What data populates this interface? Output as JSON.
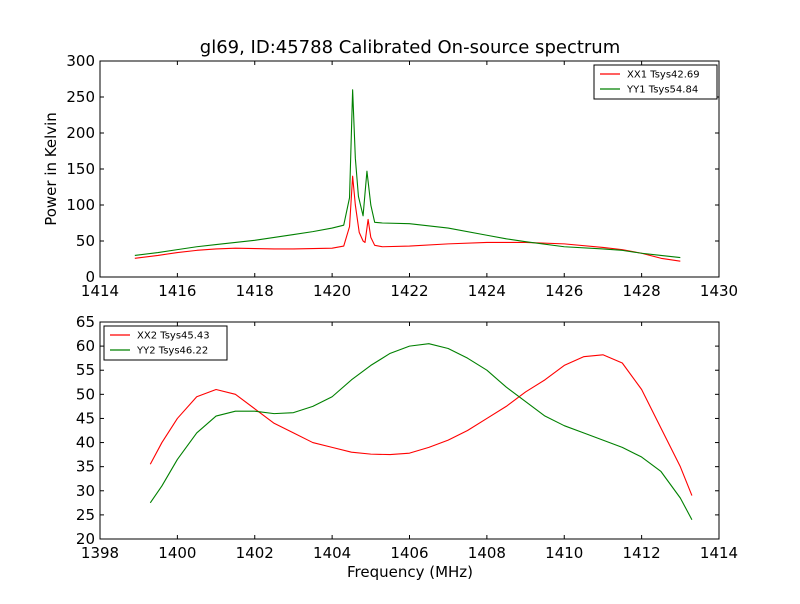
{
  "colors": {
    "red": "#ff0000",
    "green": "#008000"
  },
  "chart_data": [
    {
      "type": "line",
      "title": "gl69, ID:45788 Calibrated On-source spectrum",
      "xlabel": "",
      "ylabel": "Power in Kelvin",
      "xlim": [
        1414,
        1430
      ],
      "ylim": [
        0,
        300
      ],
      "xticks": [
        1414,
        1416,
        1418,
        1420,
        1422,
        1424,
        1426,
        1428,
        1430
      ],
      "yticks": [
        0,
        50,
        100,
        150,
        200,
        250,
        300
      ],
      "grid": false,
      "legend": "top-right",
      "series": [
        {
          "name": "XX1 Tsys42.69",
          "color": "#ff0000",
          "points": [
            [
              1414.9,
              26
            ],
            [
              1415.5,
              30
            ],
            [
              1416,
              34
            ],
            [
              1416.5,
              37
            ],
            [
              1417,
              39
            ],
            [
              1417.5,
              40
            ],
            [
              1418,
              39.5
            ],
            [
              1418.5,
              39
            ],
            [
              1419,
              39
            ],
            [
              1419.5,
              39.5
            ],
            [
              1420,
              40
            ],
            [
              1420.3,
              43
            ],
            [
              1420.45,
              70
            ],
            [
              1420.53,
              140
            ],
            [
              1420.6,
              100
            ],
            [
              1420.7,
              62
            ],
            [
              1420.8,
              50
            ],
            [
              1420.85,
              48
            ],
            [
              1420.93,
              80
            ],
            [
              1421.0,
              55
            ],
            [
              1421.1,
              44
            ],
            [
              1421.3,
              42
            ],
            [
              1422,
              43
            ],
            [
              1423,
              46
            ],
            [
              1424,
              48
            ],
            [
              1425,
              48
            ],
            [
              1426,
              46
            ],
            [
              1427,
              41
            ],
            [
              1427.5,
              38
            ],
            [
              1428,
              33
            ],
            [
              1428.5,
              26
            ],
            [
              1429,
              22
            ]
          ]
        },
        {
          "name": "YY1 Tsys54.84",
          "color": "#008000",
          "points": [
            [
              1414.9,
              30
            ],
            [
              1415.5,
              34
            ],
            [
              1416,
              38
            ],
            [
              1416.5,
              42
            ],
            [
              1417,
              45
            ],
            [
              1417.5,
              48
            ],
            [
              1418,
              51
            ],
            [
              1418.5,
              55
            ],
            [
              1419,
              59
            ],
            [
              1419.5,
              63
            ],
            [
              1420,
              68
            ],
            [
              1420.3,
              72
            ],
            [
              1420.45,
              110
            ],
            [
              1420.53,
              260
            ],
            [
              1420.6,
              165
            ],
            [
              1420.68,
              112
            ],
            [
              1420.8,
              85
            ],
            [
              1420.9,
              147
            ],
            [
              1421.0,
              100
            ],
            [
              1421.1,
              76
            ],
            [
              1421.3,
              75
            ],
            [
              1422,
              74
            ],
            [
              1423,
              68
            ],
            [
              1424,
              58
            ],
            [
              1424.5,
              53
            ],
            [
              1425,
              49
            ],
            [
              1426,
              42
            ],
            [
              1427,
              39
            ],
            [
              1427.5,
              37
            ],
            [
              1428,
              33
            ],
            [
              1428.5,
              30
            ],
            [
              1429,
              27
            ]
          ]
        }
      ]
    },
    {
      "type": "line",
      "title": "",
      "xlabel": "Frequency (MHz)",
      "ylabel": "",
      "xlim": [
        1398,
        1414
      ],
      "ylim": [
        20,
        65
      ],
      "xticks": [
        1398,
        1400,
        1402,
        1404,
        1406,
        1408,
        1410,
        1412,
        1414
      ],
      "yticks": [
        20,
        25,
        30,
        35,
        40,
        45,
        50,
        55,
        60,
        65
      ],
      "grid": false,
      "legend": "top-left",
      "series": [
        {
          "name": "XX2 Tsys45.43",
          "color": "#ff0000",
          "points": [
            [
              1399.3,
              35.5
            ],
            [
              1399.6,
              40
            ],
            [
              1400,
              45
            ],
            [
              1400.5,
              49.5
            ],
            [
              1401,
              51
            ],
            [
              1401.5,
              50
            ],
            [
              1402,
              47
            ],
            [
              1402.5,
              44
            ],
            [
              1403,
              42
            ],
            [
              1403.5,
              40
            ],
            [
              1404,
              39
            ],
            [
              1404.5,
              38
            ],
            [
              1405,
              37.6
            ],
            [
              1405.5,
              37.5
            ],
            [
              1406,
              37.8
            ],
            [
              1406.5,
              39
            ],
            [
              1407,
              40.5
            ],
            [
              1407.5,
              42.5
            ],
            [
              1408,
              45
            ],
            [
              1408.5,
              47.5
            ],
            [
              1409,
              50.5
            ],
            [
              1409.5,
              53
            ],
            [
              1410,
              56
            ],
            [
              1410.5,
              57.8
            ],
            [
              1411,
              58.2
            ],
            [
              1411.5,
              56.5
            ],
            [
              1412,
              51
            ],
            [
              1412.5,
              43
            ],
            [
              1413,
              35
            ],
            [
              1413.3,
              29
            ]
          ]
        },
        {
          "name": "YY2 Tsys46.22",
          "color": "#008000",
          "points": [
            [
              1399.3,
              27.5
            ],
            [
              1399.6,
              31
            ],
            [
              1400,
              36.5
            ],
            [
              1400.5,
              42
            ],
            [
              1401,
              45.5
            ],
            [
              1401.5,
              46.5
            ],
            [
              1402,
              46.5
            ],
            [
              1402.5,
              46
            ],
            [
              1403,
              46.2
            ],
            [
              1403.5,
              47.5
            ],
            [
              1404,
              49.5
            ],
            [
              1404.5,
              53
            ],
            [
              1405,
              56
            ],
            [
              1405.5,
              58.5
            ],
            [
              1406,
              60
            ],
            [
              1406.5,
              60.5
            ],
            [
              1407,
              59.5
            ],
            [
              1407.5,
              57.5
            ],
            [
              1408,
              55
            ],
            [
              1408.5,
              51.5
            ],
            [
              1409,
              48.5
            ],
            [
              1409.5,
              45.5
            ],
            [
              1410,
              43.5
            ],
            [
              1410.5,
              42
            ],
            [
              1411,
              40.5
            ],
            [
              1411.5,
              39
            ],
            [
              1412,
              37
            ],
            [
              1412.5,
              34
            ],
            [
              1413,
              28.5
            ],
            [
              1413.3,
              24
            ]
          ]
        }
      ]
    }
  ]
}
